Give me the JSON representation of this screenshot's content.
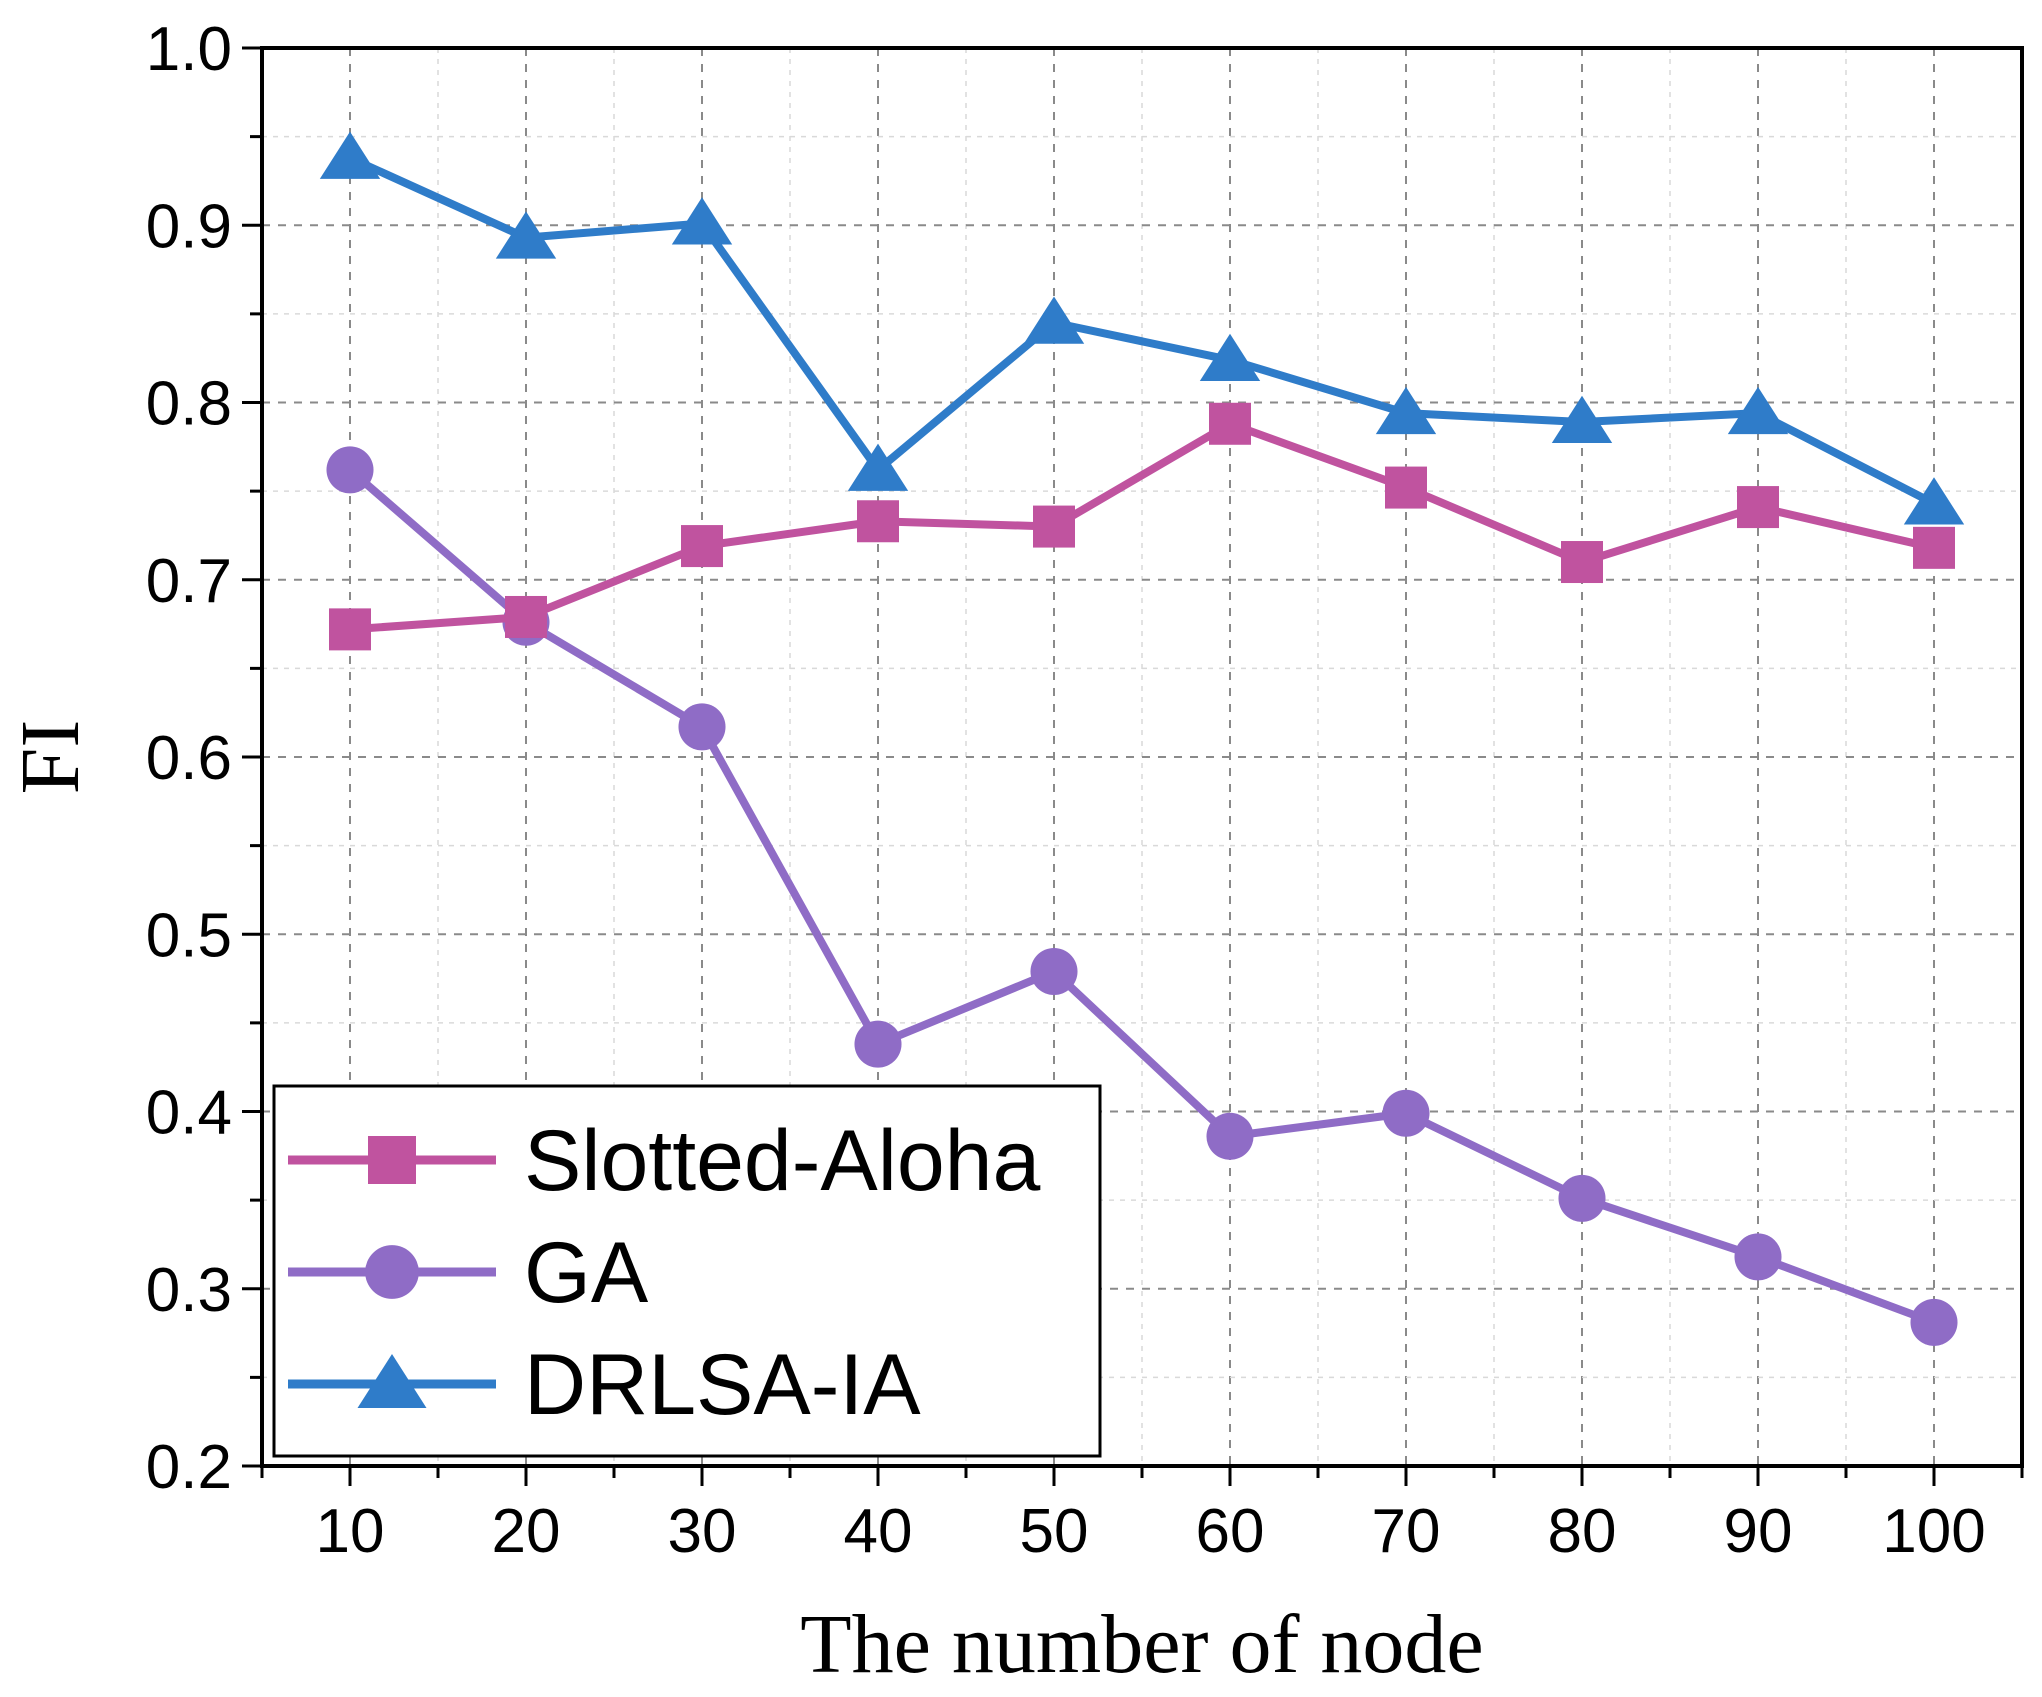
{
  "chart_data": {
    "type": "line",
    "title": "",
    "xlabel": "The number of node",
    "ylabel": "FI",
    "x": [
      10,
      20,
      30,
      40,
      50,
      60,
      70,
      80,
      90,
      100
    ],
    "xlim": [
      5,
      105
    ],
    "ylim": [
      0.2,
      1.0
    ],
    "xticks": [
      "10",
      "20",
      "30",
      "40",
      "50",
      "60",
      "70",
      "80",
      "90",
      "100"
    ],
    "yticks": [
      "0.2",
      "0.3",
      "0.4",
      "0.5",
      "0.6",
      "0.7",
      "0.8",
      "0.9",
      "1.0"
    ],
    "grid": true,
    "legend_position": "bottom-left",
    "series": [
      {
        "name": "Slotted-Aloha",
        "marker": "square",
        "color": "#c0539f",
        "values": [
          0.672,
          0.679,
          0.719,
          0.733,
          0.73,
          0.788,
          0.752,
          0.71,
          0.741,
          0.718
        ]
      },
      {
        "name": "GA",
        "marker": "circle",
        "color": "#8f6cc6",
        "values": [
          0.762,
          0.676,
          0.617,
          0.438,
          0.479,
          0.386,
          0.399,
          0.351,
          0.318,
          0.281
        ]
      },
      {
        "name": "DRLSA-IA",
        "marker": "triangle",
        "color": "#2f7cc9",
        "values": [
          0.938,
          0.893,
          0.901,
          0.762,
          0.845,
          0.824,
          0.794,
          0.789,
          0.794,
          0.743
        ]
      }
    ]
  }
}
